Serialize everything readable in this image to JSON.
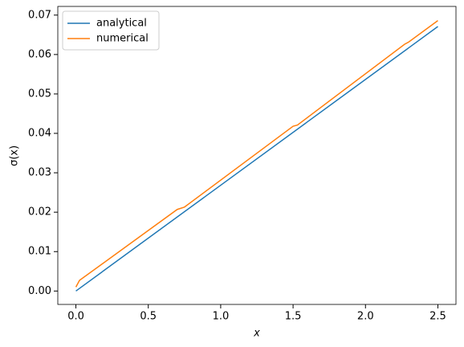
{
  "chart_data": {
    "type": "line",
    "x_label": "x",
    "y_label": "σ(x)",
    "series": [
      {
        "name": "analytical",
        "color": "#1f77b4",
        "x": [
          0,
          2.5
        ],
        "values": [
          0,
          0.0671
        ]
      },
      {
        "name": "numerical",
        "color": "#ff7f0e",
        "x": [
          0,
          0.025,
          0.7,
          0.75,
          1.5,
          1.53,
          2.27,
          2.3,
          2.5
        ],
        "values": [
          0.001,
          0.0027,
          0.0207,
          0.0213,
          0.0418,
          0.0421,
          0.0626,
          0.0632,
          0.0686
        ]
      }
    ],
    "xlim": [
      -0.125,
      2.625
    ],
    "xticks": [
      {
        "value": 0,
        "label": "0.0"
      },
      {
        "value": 0.5,
        "label": "0.5"
      },
      {
        "value": 1,
        "label": "1.0"
      },
      {
        "value": 1.5,
        "label": "1.5"
      },
      {
        "value": 2,
        "label": "2.0"
      },
      {
        "value": 2.5,
        "label": "2.5"
      }
    ],
    "ylim": [
      -0.0034,
      0.0722
    ],
    "yticks": [
      {
        "value": 0,
        "label": "0.00"
      },
      {
        "value": 0.01,
        "label": "0.01"
      },
      {
        "value": 0.02,
        "label": "0.02"
      },
      {
        "value": 0.03,
        "label": "0.03"
      },
      {
        "value": 0.04,
        "label": "0.04"
      },
      {
        "value": 0.05,
        "label": "0.05"
      },
      {
        "value": 0.06,
        "label": "0.06"
      },
      {
        "value": 0.07,
        "label": "0.07"
      }
    ],
    "grid": false,
    "legend": "upper left"
  }
}
